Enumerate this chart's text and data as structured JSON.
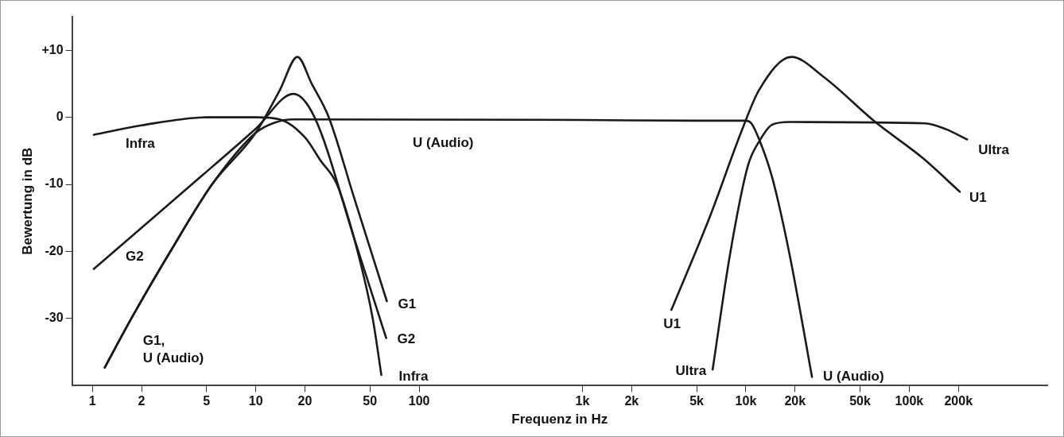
{
  "chart_data": {
    "type": "line",
    "xlabel": "Frequenz in Hz",
    "ylabel": "Bewertung in dB",
    "log": "x",
    "grid": false,
    "legend": false,
    "marker": "none",
    "line_style": "solid",
    "xlim": [
      0.75,
      700000
    ],
    "ylim": [
      -40,
      15
    ],
    "xticks": [
      1,
      2,
      5,
      10,
      20,
      50,
      100,
      {
        "value": 1000,
        "label": "1k"
      },
      {
        "value": 2000,
        "label": "2k"
      },
      {
        "value": 5000,
        "label": "5k"
      },
      {
        "value": 10000,
        "label": "10k"
      },
      {
        "value": 20000,
        "label": "20k"
      },
      {
        "value": 50000,
        "label": "50k"
      },
      {
        "value": 100000,
        "label": "100k"
      },
      {
        "value": 200000,
        "label": "200k"
      }
    ],
    "yticks": [
      {
        "value": 10,
        "label": "+10"
      },
      0,
      -10,
      -20,
      -30
    ],
    "series": [
      {
        "name": "Infra",
        "color": "#1a1a1a",
        "x": [
          1.02,
          2,
          5,
          10,
          14,
          20,
          25,
          31.4,
          42,
          52,
          58.7
        ],
        "values": [
          -2.6,
          -1.2,
          0,
          0,
          -0.3,
          -3,
          -6.5,
          -10,
          -20,
          -30,
          -38.4
        ]
      },
      {
        "name": "G1",
        "color": "#1a1a1a",
        "x": [
          1.19,
          1.73,
          3,
          5.4,
          10,
          14,
          18,
          22,
          28,
          40,
          63.4
        ],
        "values": [
          -37.3,
          -30,
          -20,
          -10,
          -2.3,
          4,
          9,
          5,
          0,
          -12,
          -27.4
        ]
      },
      {
        "name": "G2",
        "color": "#1a1a1a",
        "x": [
          1.02,
          4.06,
          10,
          17,
          22.9,
          40,
          62.8
        ],
        "values": [
          -22.6,
          -10,
          -1.7,
          3.5,
          0,
          -18,
          -32.9
        ]
      },
      {
        "name": "U (Audio)",
        "color": "#1a1a1a",
        "x": [
          1.19,
          1.73,
          3,
          5.4,
          10,
          13,
          17,
          1000,
          5000,
          10000,
          10800,
          12200,
          14500,
          18500,
          25400
        ],
        "values": [
          -37.3,
          -30,
          -20,
          -10,
          -2.3,
          -0.8,
          -0.3,
          -0.4,
          -0.5,
          -0.5,
          -0.9,
          -3.6,
          -9,
          -20.4,
          -38.7
        ]
      },
      {
        "name": "U1",
        "color": "#1a1a1a",
        "x": [
          3500,
          6000,
          9500,
          12000,
          19000,
          30000,
          62000,
          120000,
          204000
        ],
        "values": [
          -28.7,
          -14.9,
          -1.8,
          4,
          9,
          6,
          -0.7,
          -6,
          -11.1
        ]
      },
      {
        "name": "Ultra",
        "color": "#1a1a1a",
        "x": [
          6260,
          8000,
          10300,
          12200,
          14500,
          18500,
          125000,
          169000,
          226000
        ],
        "values": [
          -37.6,
          -20.4,
          -7.2,
          -3.4,
          -1.1,
          -0.7,
          -0.9,
          -1.8,
          -3.3
        ]
      }
    ],
    "annotations": [
      "G1,\nU (Audio)"
    ]
  }
}
